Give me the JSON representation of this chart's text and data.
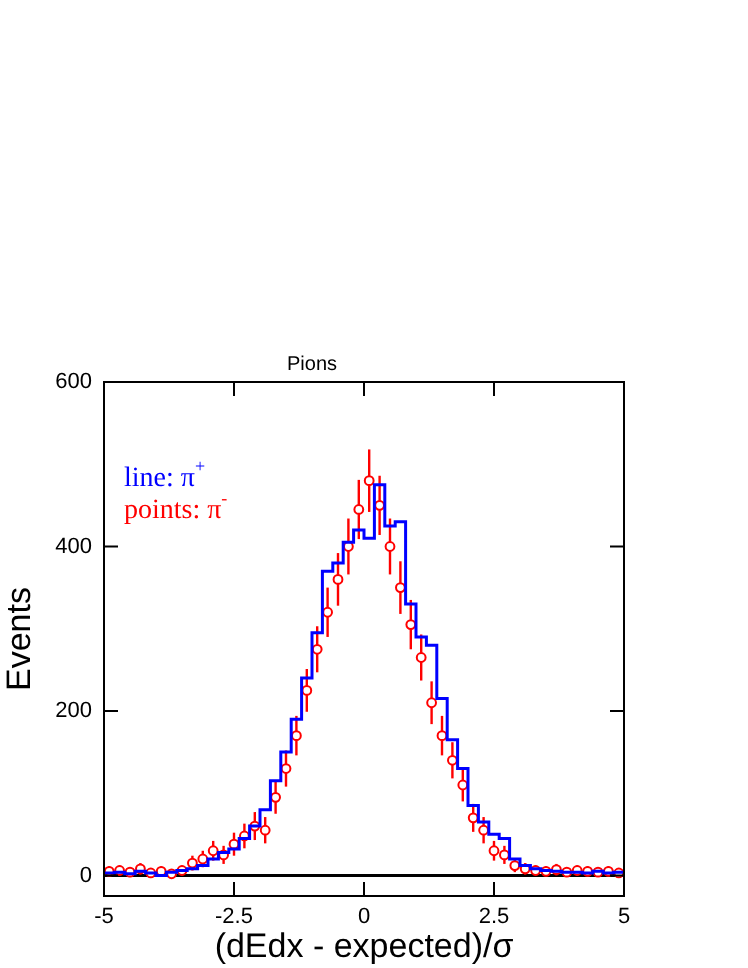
{
  "chart_data": {
    "type": "histogram",
    "title": "Pions",
    "xlabel": "(dEdx - expected)/σ",
    "ylabel": "Events",
    "bins": [
      -5,
      -4.8,
      -4.6,
      -4.4,
      -4.2,
      -4,
      -3.8,
      -3.6,
      -3.4,
      -3.2,
      -3,
      -2.8,
      -2.6,
      -2.4,
      -2.2,
      -2,
      -1.8,
      -1.6,
      -1.4,
      -1.2,
      -1,
      -0.8,
      -0.6,
      -0.4,
      -0.2,
      0,
      0.2,
      0.4,
      0.6,
      0.8,
      1,
      1.2,
      1.4,
      1.6,
      1.8,
      2,
      2.2,
      2.4,
      2.6,
      2.8,
      3,
      3.2,
      3.4,
      3.6,
      3.8,
      4,
      4.2,
      4.4,
      4.6,
      4.8,
      5
    ],
    "series": [
      {
        "name": "line: π$^{+}$",
        "color": "#0000ff",
        "values": [
          3,
          4,
          2,
          5,
          3,
          0,
          4,
          6,
          8,
          12,
          20,
          28,
          32,
          45,
          60,
          80,
          115,
          150,
          190,
          240,
          295,
          370,
          380,
          405,
          420,
          410,
          475,
          425,
          430,
          330,
          290,
          280,
          215,
          165,
          130,
          85,
          65,
          50,
          45,
          20,
          12,
          8,
          6,
          5,
          4,
          4,
          3,
          5,
          3,
          4
        ]
      },
      {
        "name": "points: π$^{-}$",
        "type": "scatter",
        "color": "#ff0000",
        "x": [
          -4.9,
          -4.7,
          -4.5,
          -4.3,
          -4.1,
          -3.9,
          -3.7,
          -3.5,
          -3.3,
          -3.1,
          -2.9,
          -2.7,
          -2.5,
          -2.3,
          -2.1,
          -1.9,
          -1.7,
          -1.5,
          -1.3,
          -1.1,
          -0.9,
          -0.7,
          -0.5,
          -0.3,
          -0.1,
          0.1,
          0.3,
          0.5,
          0.7,
          0.9,
          1.1,
          1.3,
          1.5,
          1.7,
          1.9,
          2.1,
          2.3,
          2.5,
          2.7,
          2.9,
          3.1,
          3.3,
          3.5,
          3.7,
          3.9,
          4.1,
          4.3,
          4.5,
          4.7,
          4.9
        ],
        "values": [
          5,
          6,
          4,
          8,
          3,
          5,
          2,
          6,
          15,
          20,
          30,
          25,
          38,
          48,
          60,
          55,
          95,
          130,
          170,
          225,
          275,
          320,
          360,
          400,
          445,
          480,
          450,
          400,
          350,
          305,
          265,
          210,
          170,
          140,
          110,
          70,
          55,
          30,
          25,
          12,
          8,
          6,
          5,
          7,
          4,
          6,
          5,
          4,
          5,
          3
        ],
        "errors": [
          6,
          6,
          6,
          7,
          5,
          6,
          5,
          6,
          9,
          10,
          12,
          11,
          14,
          15,
          17,
          16,
          20,
          22,
          24,
          26,
          28,
          30,
          32,
          34,
          36,
          38,
          36,
          34,
          32,
          30,
          28,
          26,
          24,
          22,
          20,
          17,
          16,
          12,
          11,
          8,
          7,
          6,
          6,
          7,
          5,
          6,
          6,
          5,
          6,
          5
        ]
      }
    ],
    "xlim": [
      -5,
      5
    ],
    "xticks": [
      -5,
      -2.5,
      0,
      2.5,
      5
    ],
    "ylim": [
      -25,
      600
    ],
    "yticks": [
      0,
      200,
      400,
      600
    ],
    "ref_lines": [
      {
        "axis": "y",
        "value": 0,
        "color": "#000000"
      }
    ],
    "marker": "circle",
    "legend": "top left",
    "grid": false
  }
}
